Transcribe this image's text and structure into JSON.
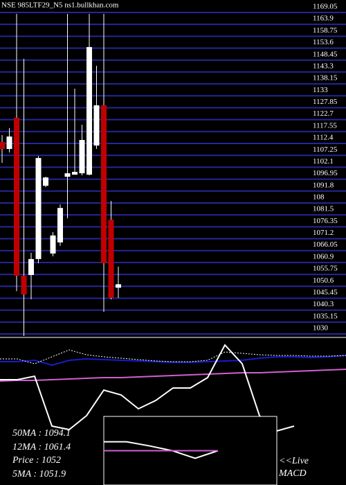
{
  "chart_data": [
    {
      "type": "candlestick",
      "title": "NSE 985LTF29_N5 ns1.bullkhan.com",
      "ylim": [
        1030,
        1169.05
      ],
      "yticks": [
        1169.05,
        1163.9,
        1158.75,
        1153.6,
        1148.45,
        1143.3,
        1138.15,
        1133,
        1127.85,
        1122.7,
        1117.55,
        1112.4,
        1107.25,
        1102.1,
        1096.95,
        1091.8,
        {
          "value": 1086.65,
          "label": "108"
        },
        1081.5,
        1076.35,
        1071.2,
        1066.05,
        1060.9,
        1055.75,
        1050.6,
        1045.45,
        1040.3,
        1035.15,
        1030
      ],
      "grid": true,
      "grid_color": "#26269a",
      "up_color": "#ffffff",
      "down_color": "#c00000",
      "open": [
        1110.6,
        1107.6,
        1121.1,
        1052.8,
        1053.1,
        1060.0,
        1091.7,
        1062.4,
        1067.2,
        1095.6,
        1096.5,
        1097.1,
        1096.5,
        1109.1,
        1126.5,
        1077.0,
        1047.6
      ],
      "high": [
        1113.6,
        1116.6,
        1166.05,
        1146.6,
        1062.7,
        1104.6,
        1095.6,
        1071.7,
        1083.6,
        1166.05,
        1133.7,
        1118.1,
        1166.05,
        1143.6,
        1166.05,
        1085.1,
        1056.7
      ],
      "low": [
        1101.6,
        1106.1,
        1046.1,
        1026.7,
        1042.6,
        1058.2,
        1091.1,
        1061.2,
        1065.7,
        1077.6,
        1096.5,
        1096.2,
        1096.2,
        1107.6,
        1037.2,
        1042.6,
        1043.2
      ],
      "close": [
        1107.6,
        1113.0,
        1052.8,
        1044.7,
        1060.0,
        1103.7,
        1095.3,
        1070.2,
        1082.1,
        1097.1,
        1097.7,
        1111.5,
        1151.7,
        1126.5,
        1058.2,
        1043.2,
        1049.1
      ]
    },
    {
      "type": "line",
      "ylim": [
        0,
        210
      ],
      "series": [
        {
          "name": "MA long",
          "color": "#d060d0",
          "values": [
            150,
            151,
            151,
            152,
            153,
            154,
            155,
            155,
            156,
            157,
            158,
            159,
            160,
            161,
            162,
            162,
            163,
            164,
            165,
            166,
            167
          ]
        },
        {
          "name": "MA mid",
          "color": "#1a1ad0",
          "values": [
            178,
            178,
            180,
            173,
            180,
            182,
            181,
            180,
            179,
            178,
            177,
            177,
            178,
            179,
            180,
            183,
            185,
            185,
            184,
            185,
            187
          ]
        },
        {
          "name": "MA short",
          "color": "#ffffff",
          "dashed": true,
          "values": [
            182,
            182,
            175,
            185,
            195,
            188,
            185,
            183,
            181,
            179,
            178,
            178,
            180,
            192,
            190,
            188,
            187,
            187,
            186,
            186,
            187
          ]
        },
        {
          "name": "Price",
          "color": "#ffffff",
          "values": [
            152,
            152,
            157,
            85,
            80,
            100,
            137,
            130,
            110,
            122,
            140,
            140,
            155,
            202,
            175,
            100,
            78,
            85
          ]
        }
      ],
      "annotations": [
        "50MA : 1094.1",
        "12MA : 1061.4",
        "Price   : 1052",
        "5MA : 1051.9"
      ]
    },
    {
      "type": "macd",
      "ylim": [
        0,
        100
      ],
      "live": "<<Live",
      "label": "MACD",
      "series": [
        {
          "name": "MACD",
          "color": "#ffffff",
          "values": [
            63,
            63,
            57,
            50,
            39,
            50
          ]
        },
        {
          "name": "Signal",
          "color": "#d060d0",
          "values": [
            50,
            50,
            50,
            50,
            50,
            50
          ]
        }
      ]
    }
  ]
}
